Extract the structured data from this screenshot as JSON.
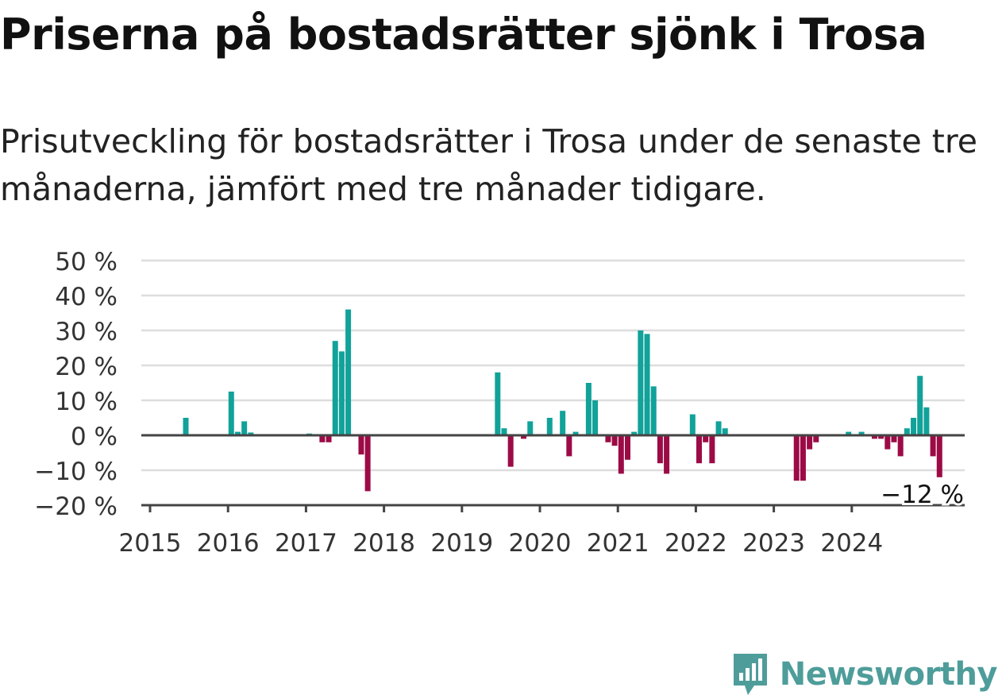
{
  "header": {
    "title": "Priserna på bostadsrätter sjönk i Trosa",
    "subtitle": "Prisutveckling för bostadsrätter i Trosa under de senaste tre månaderna, jämfört med tre månader tidigare."
  },
  "brand": {
    "name": "Newsworthy",
    "icon": "newsworthy-logo-icon",
    "color": "#4e9d9a"
  },
  "colors": {
    "positive": "#11a29a",
    "negative": "#9c0b46",
    "grid": "#dddddd",
    "zero_line": "#444444"
  },
  "chart_data": {
    "type": "bar",
    "title": "",
    "xlabel": "",
    "ylabel": "",
    "ylim": [
      -20,
      50
    ],
    "yticks": [
      -20,
      -10,
      0,
      10,
      20,
      30,
      40,
      50
    ],
    "ytick_labels": [
      "−20 %",
      "−10 %",
      "0 %",
      "10 %",
      "20 %",
      "30 %",
      "40 %",
      "50 %"
    ],
    "xticks": [
      "2015",
      "2016",
      "2017",
      "2018",
      "2019",
      "2020",
      "2021",
      "2022",
      "2023",
      "2024"
    ],
    "grid": true,
    "start_month": "2015-01",
    "series": [
      {
        "values": [
          0,
          0,
          0,
          0,
          0,
          5,
          0,
          0,
          0,
          0,
          0,
          0,
          12.5,
          1,
          4,
          0.8,
          0,
          0,
          0,
          0,
          0,
          0,
          0,
          0,
          0.5,
          0,
          -2,
          -2,
          27,
          24,
          36,
          0,
          -5.5,
          -16,
          0,
          0,
          0,
          0,
          0,
          0,
          0,
          0,
          0,
          0,
          0,
          0,
          0,
          0,
          0,
          0,
          0,
          0,
          0,
          18,
          2,
          -9,
          0,
          -1,
          4,
          0,
          0,
          5,
          0,
          7,
          -6,
          1,
          0,
          15,
          10,
          0,
          -2,
          -3,
          -11,
          -7,
          1,
          30,
          29,
          14,
          -8,
          -11,
          0,
          0,
          0,
          6,
          -8,
          -2,
          -8,
          4,
          2,
          0,
          0,
          0,
          0,
          0,
          0,
          0,
          0,
          0,
          0,
          -13,
          -13,
          -4,
          -2,
          0,
          0,
          0,
          0,
          1,
          0,
          1,
          0,
          -1,
          -1,
          -4,
          -2,
          -6,
          2,
          5,
          17,
          8,
          -6,
          -12
        ]
      }
    ],
    "annotation": {
      "label": "−12 %",
      "value": -12
    }
  }
}
